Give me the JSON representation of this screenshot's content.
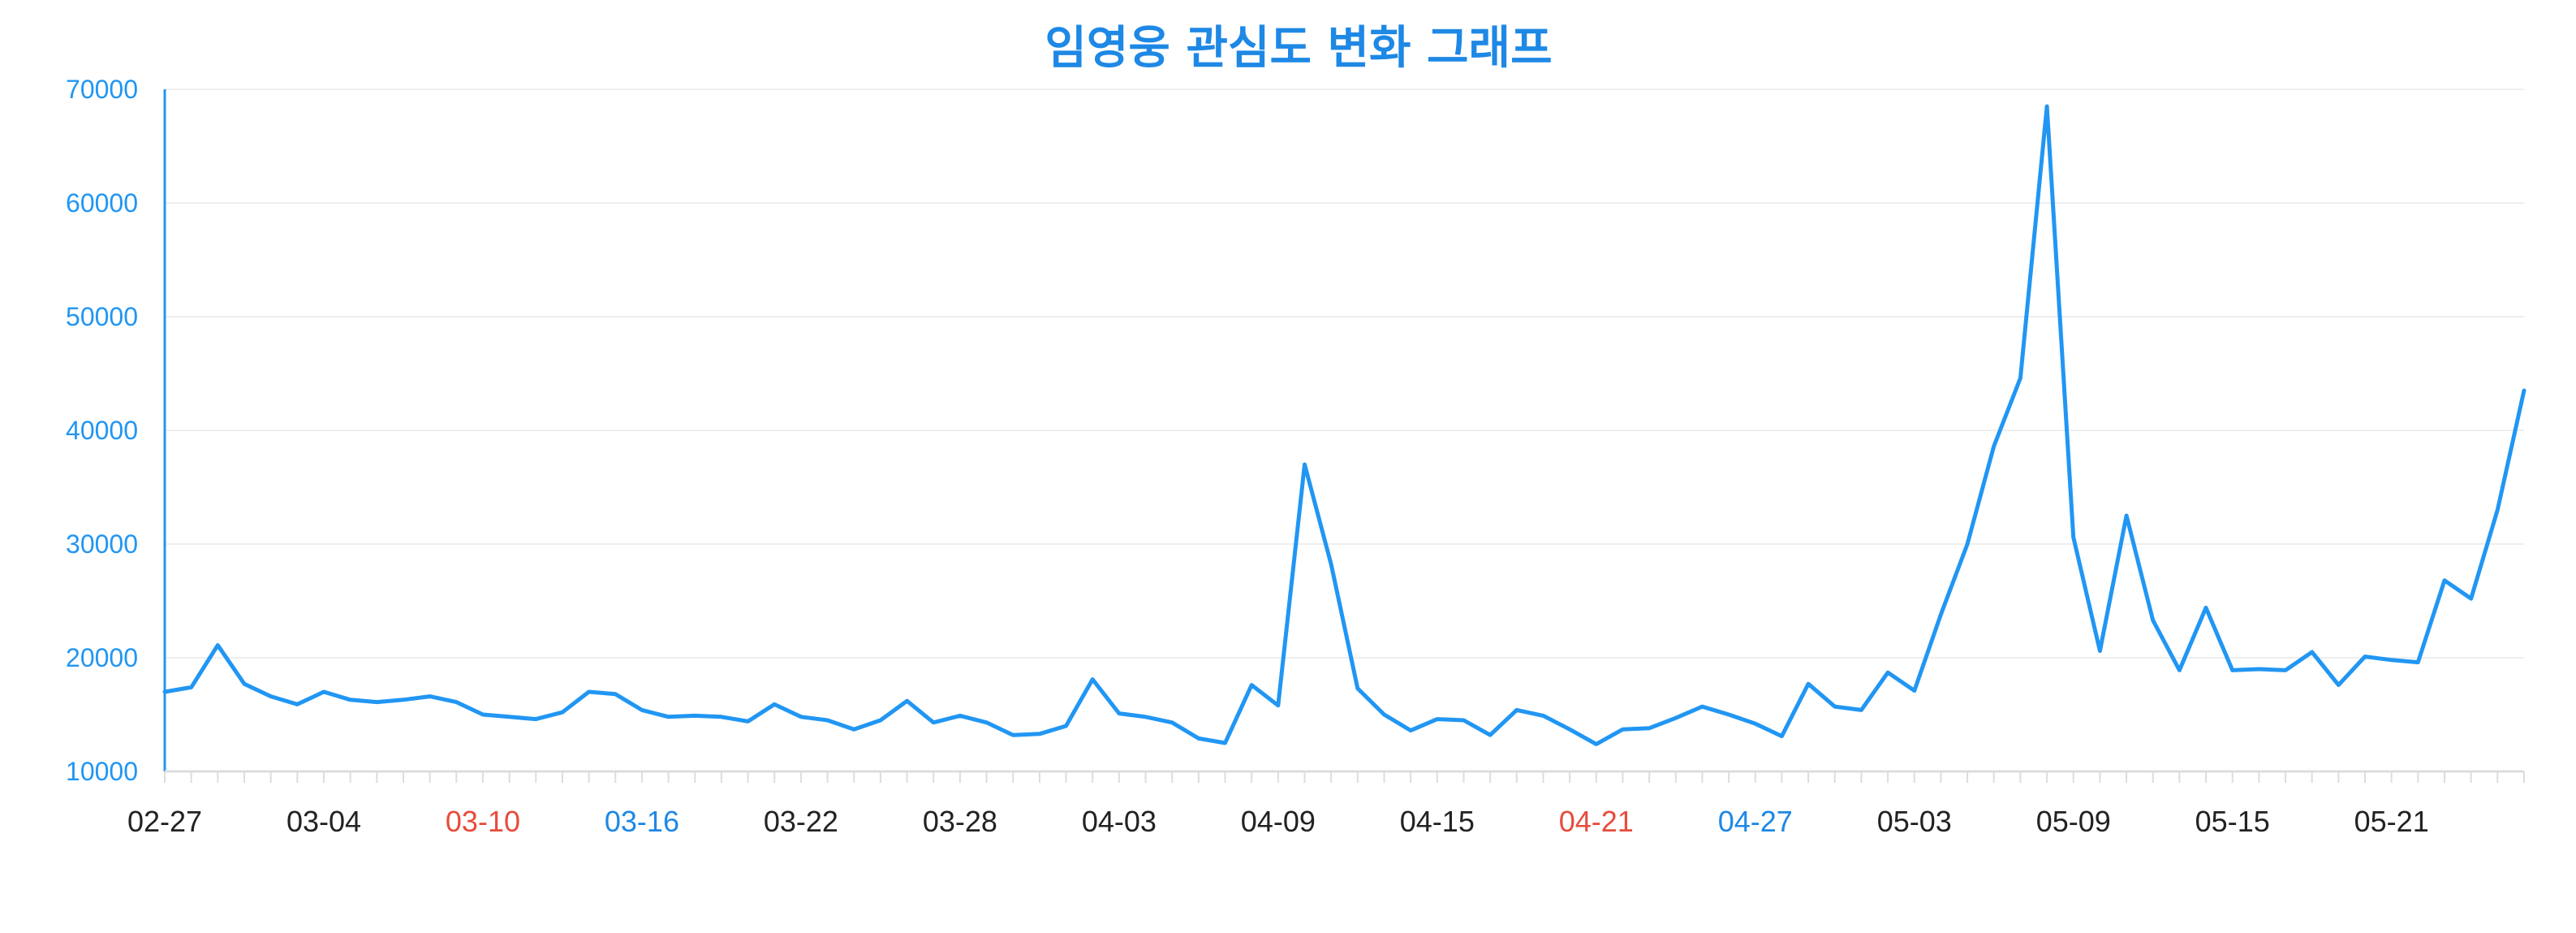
{
  "colors": {
    "accent": "#2196f3",
    "title": "#1e88e5",
    "axis": "#2196f3",
    "grid": "#eeeeee",
    "tick_default": "#222222",
    "tick_saturday": "#1e88e5",
    "tick_sunday": "#e74c3c"
  },
  "chart_data": {
    "type": "line",
    "title": "임영웅 관심도 변화 그래프",
    "xlabel": "",
    "ylabel": "",
    "ylim": [
      10000,
      70000
    ],
    "yticks": [
      10000,
      20000,
      30000,
      40000,
      50000,
      60000,
      70000
    ],
    "ytick_labels": [
      "10000",
      "20000",
      "30000",
      "40000",
      "50000",
      "60000",
      "70000"
    ],
    "grid": true,
    "legend": "none",
    "x": [
      "02-27",
      "02-28",
      "02-29",
      "03-01",
      "03-02",
      "03-03",
      "03-04",
      "03-05",
      "03-06",
      "03-07",
      "03-08",
      "03-09",
      "03-10",
      "03-11",
      "03-12",
      "03-13",
      "03-14",
      "03-15",
      "03-16",
      "03-17",
      "03-18",
      "03-19",
      "03-20",
      "03-21",
      "03-22",
      "03-23",
      "03-24",
      "03-25",
      "03-26",
      "03-27",
      "03-28",
      "03-29",
      "03-30",
      "03-31",
      "04-01",
      "04-02",
      "04-03",
      "04-04",
      "04-05",
      "04-06",
      "04-07",
      "04-08",
      "04-09",
      "04-10",
      "04-11",
      "04-12",
      "04-13",
      "04-14",
      "04-15",
      "04-16",
      "04-17",
      "04-18",
      "04-19",
      "04-20",
      "04-21",
      "04-22",
      "04-23",
      "04-24",
      "04-25",
      "04-26",
      "04-27",
      "04-28",
      "04-29",
      "04-30",
      "05-01",
      "05-02",
      "05-03",
      "05-04",
      "05-05",
      "05-06",
      "05-07",
      "05-08",
      "05-09",
      "05-10",
      "05-11",
      "05-12",
      "05-13",
      "05-14",
      "05-15",
      "05-16",
      "05-17",
      "05-18",
      "05-19",
      "05-20",
      "05-21",
      "05-22",
      "05-23",
      "05-24",
      "05-25",
      "05-26"
    ],
    "xtick_labels": [
      {
        "label": "02-27",
        "index": 0,
        "color": "default"
      },
      {
        "label": "03-04",
        "index": 6,
        "color": "default"
      },
      {
        "label": "03-10",
        "index": 12,
        "color": "sunday"
      },
      {
        "label": "03-16",
        "index": 18,
        "color": "saturday"
      },
      {
        "label": "03-22",
        "index": 24,
        "color": "default"
      },
      {
        "label": "03-28",
        "index": 30,
        "color": "default"
      },
      {
        "label": "04-03",
        "index": 36,
        "color": "default"
      },
      {
        "label": "04-09",
        "index": 42,
        "color": "default"
      },
      {
        "label": "04-15",
        "index": 48,
        "color": "default"
      },
      {
        "label": "04-21",
        "index": 54,
        "color": "sunday"
      },
      {
        "label": "04-27",
        "index": 60,
        "color": "saturday"
      },
      {
        "label": "05-03",
        "index": 66,
        "color": "default"
      },
      {
        "label": "05-09",
        "index": 72,
        "color": "default"
      },
      {
        "label": "05-15",
        "index": 78,
        "color": "default"
      },
      {
        "label": "05-21",
        "index": 84,
        "color": "default"
      }
    ],
    "series": [
      {
        "color": "#2196f3",
        "values": [
          17000,
          17400,
          21100,
          17700,
          16600,
          15900,
          17000,
          16300,
          16100,
          16300,
          16600,
          16100,
          15000,
          14800,
          14600,
          15200,
          17000,
          16800,
          15400,
          14800,
          14900,
          14800,
          14400,
          15900,
          14800,
          14500,
          13700,
          14500,
          16200,
          14300,
          14900,
          14300,
          13200,
          13300,
          14000,
          18100,
          15100,
          14800,
          14300,
          12900,
          12500,
          17600,
          15800,
          37000,
          28200,
          17300,
          15000,
          13600,
          14600,
          14500,
          13200,
          15400,
          14900,
          13700,
          12400,
          13700,
          13800,
          14700,
          15700,
          15000,
          14200,
          13100,
          17700,
          15700,
          15400,
          18700,
          17100,
          23800,
          30000,
          38600,
          44600,
          68500,
          30600,
          20600,
          32500,
          23300,
          18900,
          24400,
          18900,
          19000,
          18900,
          20500,
          17600,
          20100,
          19800,
          19600,
          26800,
          25200,
          33000,
          43500
        ]
      }
    ]
  }
}
